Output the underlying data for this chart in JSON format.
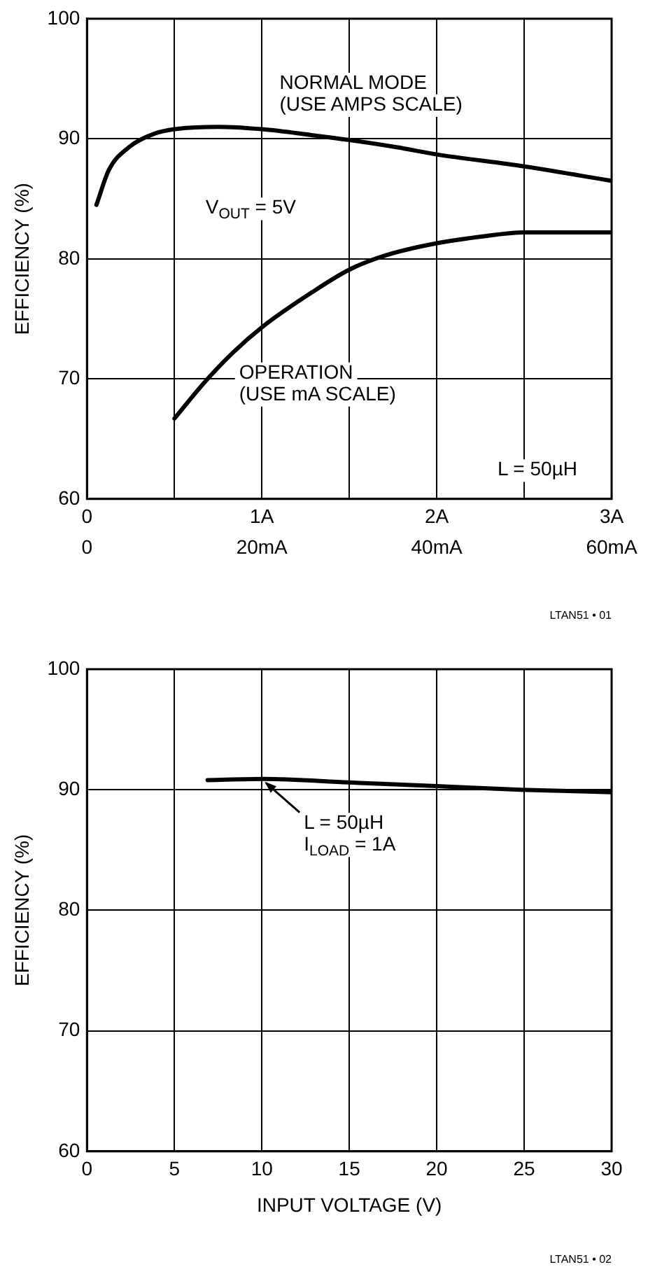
{
  "chart_data": [
    {
      "type": "line",
      "ylabel": "EFFICIENCY (%)",
      "xlim": [
        0,
        3
      ],
      "xticks": [
        0,
        {
          "value": 0.5,
          "label": null
        },
        {
          "value": 1,
          "label": "1A"
        },
        {
          "value": 1.5,
          "label": null
        },
        {
          "value": 2,
          "label": "2A"
        },
        {
          "value": 2.5,
          "label": null
        },
        {
          "value": 3,
          "label": "3A"
        }
      ],
      "x2lim": [
        0,
        60
      ],
      "x2ticks": [
        0,
        {
          "value": 20,
          "label": "20mA"
        },
        {
          "value": 40,
          "label": "40mA"
        },
        {
          "value": 60,
          "label": "60mA"
        }
      ],
      "ylim": [
        60,
        100
      ],
      "yticks": [
        60,
        70,
        80,
        90,
        100
      ],
      "grid": true,
      "legend": false,
      "line_style": "solid",
      "marker": "none",
      "series": [
        {
          "name": "NORMAL MODE\n(USE AMPS SCALE)",
          "color": "#000000",
          "x": [
            0.054,
            0.125,
            0.24,
            0.38,
            0.5,
            0.75,
            1.0,
            1.29,
            1.5,
            1.77,
            2.0,
            2.5,
            3.0
          ],
          "values": [
            84.5,
            87.4,
            89.3,
            90.4,
            90.8,
            91.0,
            90.8,
            90.3,
            89.9,
            89.3,
            88.7,
            87.7,
            86.5
          ]
        },
        {
          "name": "OPERATION\n(USE mA SCALE)",
          "color": "#000000",
          "axis": "x2",
          "x": [
            10,
            13.3,
            16.7,
            20,
            25.7,
            30,
            34.2,
            40,
            45.6,
            50,
            60
          ],
          "values": [
            66.7,
            69.6,
            72.2,
            74.3,
            77.2,
            79.1,
            80.3,
            81.3,
            81.9,
            82.2,
            82.2
          ]
        }
      ],
      "annotations": [
        "V$_{OUT}$ = 5V",
        "L = 50µH",
        "LTAN51 • 01"
      ]
    },
    {
      "type": "line",
      "xlabel": "INPUT VOLTAGE (V)",
      "ylabel": "EFFICIENCY (%)",
      "xlim": [
        0,
        30
      ],
      "xticks": [
        0,
        5,
        10,
        15,
        20,
        25,
        30
      ],
      "ylim": [
        60,
        100
      ],
      "yticks": [
        60,
        70,
        80,
        90,
        100
      ],
      "grid": true,
      "legend": false,
      "line_style": "solid",
      "marker": "none",
      "series": [
        {
          "color": "#000000",
          "x": [
            6.9,
            10.1,
            15,
            20,
            24.8,
            30
          ],
          "values": [
            90.8,
            90.9,
            90.6,
            90.3,
            90.0,
            89.8
          ]
        }
      ],
      "annotations": [
        {
          "text": "L = 50µH\nI$_{LOAD}$ = 1A",
          "x": 10,
          "y": 90.9
        },
        "LTAN51 • 02"
      ]
    }
  ]
}
